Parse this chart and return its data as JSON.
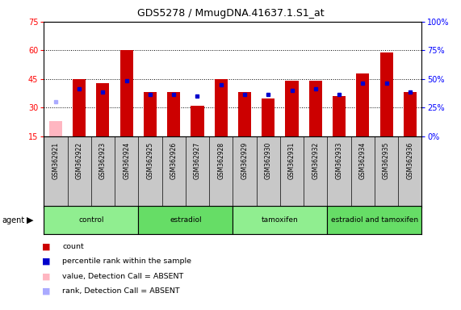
{
  "title": "GDS5278 / MmugDNA.41637.1.S1_at",
  "samples": [
    "GSM362921",
    "GSM362922",
    "GSM362923",
    "GSM362924",
    "GSM362925",
    "GSM362926",
    "GSM362927",
    "GSM362928",
    "GSM362929",
    "GSM362930",
    "GSM362931",
    "GSM362932",
    "GSM362933",
    "GSM362934",
    "GSM362935",
    "GSM362936"
  ],
  "count_values": [
    null,
    45,
    43,
    60,
    38,
    38,
    31,
    45,
    38,
    35,
    44,
    44,
    36,
    48,
    59,
    38
  ],
  "count_absent_values": [
    23,
    null,
    null,
    null,
    null,
    null,
    null,
    null,
    null,
    null,
    null,
    null,
    null,
    null,
    null,
    null
  ],
  "rank_values": [
    null,
    40,
    38,
    44,
    37,
    37,
    36,
    42,
    37,
    37,
    39,
    40,
    37,
    43,
    43,
    38
  ],
  "rank_absent_values": [
    33,
    null,
    null,
    null,
    null,
    null,
    null,
    null,
    null,
    null,
    null,
    null,
    null,
    null,
    null,
    null
  ],
  "groups": [
    {
      "label": "control",
      "indices": [
        0,
        1,
        2,
        3
      ],
      "color": "#90EE90"
    },
    {
      "label": "estradiol",
      "indices": [
        4,
        5,
        6,
        7
      ],
      "color": "#66DD66"
    },
    {
      "label": "tamoxifen",
      "indices": [
        8,
        9,
        10,
        11
      ],
      "color": "#90EE90"
    },
    {
      "label": "estradiol and tamoxifen",
      "indices": [
        12,
        13,
        14,
        15
      ],
      "color": "#66DD66"
    }
  ],
  "ylim_left": [
    15,
    75
  ],
  "ylim_right": [
    0,
    100
  ],
  "left_ticks": [
    15,
    30,
    45,
    60,
    75
  ],
  "right_ticks": [
    0,
    25,
    50,
    75,
    100
  ],
  "bar_color": "#CC0000",
  "bar_absent_color": "#FFB6C1",
  "rank_color": "#0000CC",
  "rank_absent_color": "#AAAAFF",
  "grid_color": "#000000",
  "bg_color": "#FFFFFF",
  "legend_items": [
    {
      "color": "#CC0000",
      "label": "count"
    },
    {
      "color": "#0000CC",
      "label": "percentile rank within the sample"
    },
    {
      "color": "#FFB6C1",
      "label": "value, Detection Call = ABSENT"
    },
    {
      "color": "#AAAAFF",
      "label": "rank, Detection Call = ABSENT"
    }
  ]
}
